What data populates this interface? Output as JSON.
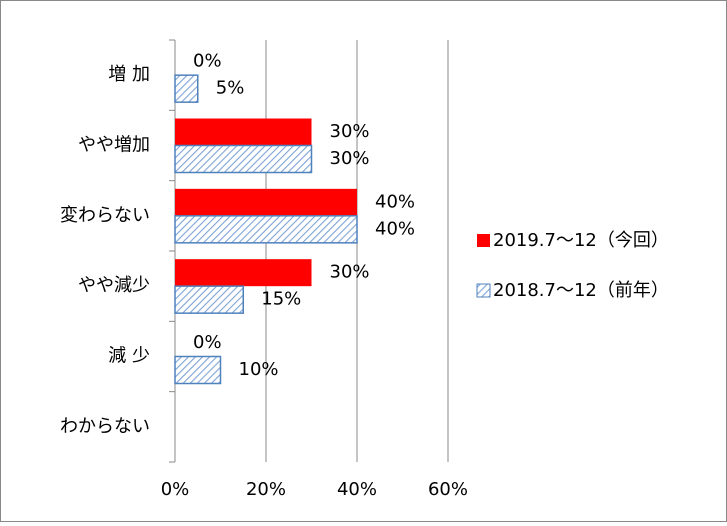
{
  "chart_data": {
    "type": "hbar",
    "categories": [
      "増 加",
      "やや増加",
      "変わらない",
      "やや減少",
      "減 少",
      "わからない"
    ],
    "series": [
      {
        "name": "2019.7～12（今回）",
        "color": "#ff0000",
        "values": [
          0,
          30,
          40,
          30,
          0,
          null
        ],
        "value_labels": [
          "0%",
          "30%",
          "40%",
          "30%",
          "0%",
          null
        ]
      },
      {
        "name": "2018.7～12（前年）",
        "color": "#4f81bd",
        "pattern": "hatch",
        "values": [
          5,
          30,
          40,
          15,
          10,
          null
        ],
        "value_labels": [
          "5%",
          "30%",
          "40%",
          "15%",
          "10%",
          null
        ]
      }
    ],
    "xlim": [
      0,
      60
    ],
    "xticks": [
      {
        "value": 0,
        "label": "0%"
      },
      {
        "value": 20,
        "label": "20%"
      },
      {
        "value": 40,
        "label": "40%"
      },
      {
        "value": 60,
        "label": "60%"
      }
    ],
    "grid": true,
    "legend": "right"
  }
}
